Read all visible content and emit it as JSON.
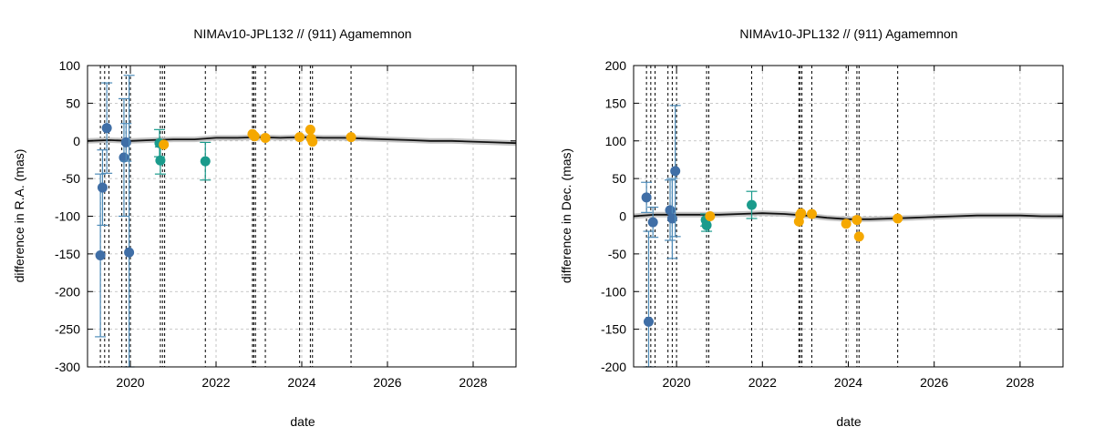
{
  "chart_data": [
    {
      "type": "scatter",
      "title": "NIMAv10-JPL132 // (911) Agamemnon",
      "xlabel": "date",
      "ylabel": "difference in R.A. (mas)",
      "xlim": [
        2019.0,
        2029.0
      ],
      "ylim": [
        -300,
        100
      ],
      "xticks": [
        2020,
        2022,
        2024,
        2026,
        2028
      ],
      "yticks": [
        -300,
        -250,
        -200,
        -150,
        -100,
        -50,
        0,
        50,
        100
      ],
      "vlines": [
        2019.3,
        2019.4,
        2019.5,
        2019.8,
        2019.9,
        2020.0,
        2020.7,
        2020.75,
        2020.8,
        2021.75,
        2022.85,
        2022.88,
        2022.92,
        2023.15,
        2023.95,
        2024.2,
        2024.25,
        2025.15
      ],
      "model_curve": [
        {
          "x": 2019.0,
          "y": 0
        },
        {
          "x": 2019.5,
          "y": 1
        },
        {
          "x": 2020.0,
          "y": 0
        },
        {
          "x": 2020.5,
          "y": 1
        },
        {
          "x": 2021.0,
          "y": 2
        },
        {
          "x": 2021.5,
          "y": 2
        },
        {
          "x": 2022.0,
          "y": 4
        },
        {
          "x": 2022.5,
          "y": 4
        },
        {
          "x": 2023.0,
          "y": 5
        },
        {
          "x": 2023.5,
          "y": 4
        },
        {
          "x": 2024.0,
          "y": 5
        },
        {
          "x": 2024.5,
          "y": 4
        },
        {
          "x": 2025.0,
          "y": 4
        },
        {
          "x": 2025.5,
          "y": 3
        },
        {
          "x": 2026.0,
          "y": 2
        },
        {
          "x": 2026.5,
          "y": 1
        },
        {
          "x": 2027.0,
          "y": 0
        },
        {
          "x": 2027.5,
          "y": 0
        },
        {
          "x": 2028.0,
          "y": -1
        },
        {
          "x": 2028.5,
          "y": -2
        },
        {
          "x": 2029.0,
          "y": -3
        }
      ],
      "series": [
        {
          "name": "blue",
          "color": "#3f6ea6",
          "points": [
            {
              "x": 2019.3,
              "y": -152,
              "err": 108
            },
            {
              "x": 2019.35,
              "y": -62,
              "err": 50
            },
            {
              "x": 2019.45,
              "y": 17,
              "err": 60
            },
            {
              "x": 2019.85,
              "y": -22,
              "err": 78
            },
            {
              "x": 2019.9,
              "y": -2,
              "err": 25
            },
            {
              "x": 2019.97,
              "y": -148,
              "err": 235
            }
          ]
        },
        {
          "name": "teal",
          "color": "#1a9b8c",
          "points": [
            {
              "x": 2020.68,
              "y": -3,
              "err": 18
            },
            {
              "x": 2020.7,
              "y": -26,
              "err": 18
            },
            {
              "x": 2021.75,
              "y": -27,
              "err": 25
            }
          ]
        },
        {
          "name": "orange",
          "color": "#f5a800",
          "points": [
            {
              "x": 2020.78,
              "y": -5,
              "err": 0
            },
            {
              "x": 2022.85,
              "y": 9,
              "err": 0
            },
            {
              "x": 2022.9,
              "y": 6,
              "err": 0
            },
            {
              "x": 2023.15,
              "y": 4,
              "err": 0
            },
            {
              "x": 2023.95,
              "y": 5,
              "err": 0
            },
            {
              "x": 2024.2,
              "y": 15,
              "err": 0
            },
            {
              "x": 2024.22,
              "y": 3,
              "err": 0
            },
            {
              "x": 2024.25,
              "y": -1,
              "err": 0
            },
            {
              "x": 2025.15,
              "y": 5,
              "err": 0
            }
          ]
        }
      ]
    },
    {
      "type": "scatter",
      "title": "NIMAv10-JPL132 // (911) Agamemnon",
      "xlabel": "date",
      "ylabel": "difference in Dec. (mas)",
      "xlim": [
        2019.0,
        2029.0
      ],
      "ylim": [
        -200,
        200
      ],
      "xticks": [
        2020,
        2022,
        2024,
        2026,
        2028
      ],
      "yticks": [
        -200,
        -150,
        -100,
        -50,
        0,
        50,
        100,
        150,
        200
      ],
      "vlines": [
        2019.3,
        2019.4,
        2019.5,
        2019.8,
        2019.9,
        2020.0,
        2020.7,
        2020.75,
        2021.75,
        2022.85,
        2022.88,
        2022.92,
        2023.15,
        2023.95,
        2024.2,
        2024.25,
        2025.15
      ],
      "model_curve": [
        {
          "x": 2019.0,
          "y": 0
        },
        {
          "x": 2019.5,
          "y": 2
        },
        {
          "x": 2020.0,
          "y": 2
        },
        {
          "x": 2020.5,
          "y": 2
        },
        {
          "x": 2021.0,
          "y": 2
        },
        {
          "x": 2021.5,
          "y": 3
        },
        {
          "x": 2022.0,
          "y": 4
        },
        {
          "x": 2022.5,
          "y": 3
        },
        {
          "x": 2023.0,
          "y": 1
        },
        {
          "x": 2023.5,
          "y": -2
        },
        {
          "x": 2024.0,
          "y": -4
        },
        {
          "x": 2024.5,
          "y": -4
        },
        {
          "x": 2025.0,
          "y": -3
        },
        {
          "x": 2025.5,
          "y": -2
        },
        {
          "x": 2026.0,
          "y": -1
        },
        {
          "x": 2026.5,
          "y": 0
        },
        {
          "x": 2027.0,
          "y": 1
        },
        {
          "x": 2027.5,
          "y": 1
        },
        {
          "x": 2028.0,
          "y": 1
        },
        {
          "x": 2028.5,
          "y": 0
        },
        {
          "x": 2029.0,
          "y": 0
        }
      ],
      "series": [
        {
          "name": "blue",
          "color": "#3f6ea6",
          "points": [
            {
              "x": 2019.3,
              "y": 25,
              "err": 20
            },
            {
              "x": 2019.35,
              "y": -140,
              "err": 120
            },
            {
              "x": 2019.45,
              "y": -8,
              "err": 20
            },
            {
              "x": 2019.85,
              "y": 8,
              "err": 40
            },
            {
              "x": 2019.9,
              "y": -3,
              "err": 53
            },
            {
              "x": 2019.97,
              "y": 60,
              "err": 87
            }
          ]
        },
        {
          "name": "teal",
          "color": "#1a9b8c",
          "points": [
            {
              "x": 2020.68,
              "y": -5,
              "err": 8
            },
            {
              "x": 2020.7,
              "y": -12,
              "err": 8
            },
            {
              "x": 2021.75,
              "y": 15,
              "err": 18
            }
          ]
        },
        {
          "name": "orange",
          "color": "#f5a800",
          "points": [
            {
              "x": 2020.78,
              "y": 0,
              "err": 0
            },
            {
              "x": 2022.85,
              "y": -7,
              "err": 0
            },
            {
              "x": 2022.88,
              "y": 2,
              "err": 0
            },
            {
              "x": 2022.9,
              "y": 4,
              "err": 0
            },
            {
              "x": 2023.15,
              "y": 3,
              "err": 0
            },
            {
              "x": 2023.95,
              "y": -10,
              "err": 0
            },
            {
              "x": 2024.2,
              "y": -5,
              "err": 0
            },
            {
              "x": 2024.25,
              "y": -27,
              "err": 0
            },
            {
              "x": 2025.15,
              "y": -3,
              "err": 0
            }
          ]
        }
      ]
    }
  ]
}
